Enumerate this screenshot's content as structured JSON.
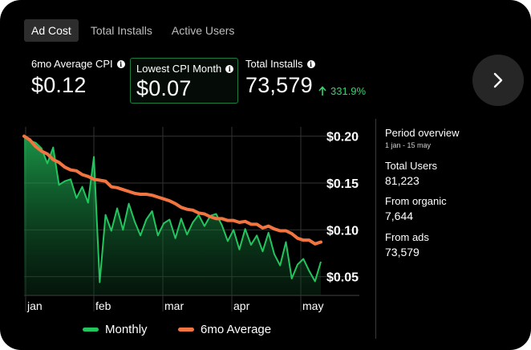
{
  "tabs": [
    "Ad Cost",
    "Total Installs",
    "Active Users"
  ],
  "kpis": {
    "avg_cpi": {
      "label": "6mo Average CPI",
      "value": "$0.12"
    },
    "lowest_cpi": {
      "label": "Lowest CPI Month",
      "value": "$0.07"
    },
    "total_installs": {
      "label": "Total Installs",
      "value": "73,579",
      "growth": "331.9%"
    }
  },
  "sidebar": {
    "title": "Period overview",
    "period": "1 jan - 15 may",
    "stats": [
      {
        "label": "Total Users",
        "value": "81,223"
      },
      {
        "label": "From organic",
        "value": "7,644"
      },
      {
        "label": "From ads",
        "value": "73,579"
      }
    ]
  },
  "colors": {
    "monthly": "#22c55e",
    "average": "#f27541",
    "accent_green": "#3bd16f"
  },
  "icons": {
    "info": "info-icon",
    "next": "chevron-right-icon",
    "growth": "arrow-up-icon"
  },
  "chart_data": {
    "type": "line",
    "x_ticks": [
      "jan",
      "feb",
      "mar",
      "apr",
      "may"
    ],
    "y_ticks": [
      "$0.20",
      "$0.15",
      "$0.10",
      "$0.05"
    ],
    "ylim": [
      0.03,
      0.21
    ],
    "grid": true,
    "legend_position": "bottom",
    "series": [
      {
        "name": "Monthly",
        "color": "#22c55e",
        "fill": true,
        "values": [
          0.2,
          0.195,
          0.193,
          0.187,
          0.171,
          0.188,
          0.148,
          0.152,
          0.154,
          0.134,
          0.146,
          0.129,
          0.178,
          0.044,
          0.116,
          0.099,
          0.123,
          0.1,
          0.128,
          0.109,
          0.094,
          0.111,
          0.12,
          0.094,
          0.107,
          0.111,
          0.091,
          0.112,
          0.095,
          0.108,
          0.116,
          0.104,
          0.115,
          0.117,
          0.105,
          0.088,
          0.1,
          0.079,
          0.101,
          0.084,
          0.094,
          0.077,
          0.097,
          0.074,
          0.062,
          0.087,
          0.048,
          0.063,
          0.069,
          0.056,
          0.045,
          0.066
        ]
      },
      {
        "name": "6mo Average",
        "color": "#f27541",
        "fill": false,
        "values": [
          0.2,
          0.196,
          0.189,
          0.184,
          0.181,
          0.175,
          0.172,
          0.167,
          0.164,
          0.163,
          0.159,
          0.157,
          0.154,
          0.153,
          0.152,
          0.146,
          0.145,
          0.143,
          0.141,
          0.139,
          0.138,
          0.138,
          0.137,
          0.135,
          0.133,
          0.131,
          0.128,
          0.124,
          0.122,
          0.121,
          0.118,
          0.117,
          0.114,
          0.112,
          0.112,
          0.11,
          0.11,
          0.108,
          0.109,
          0.106,
          0.106,
          0.102,
          0.104,
          0.101,
          0.099,
          0.099,
          0.096,
          0.091,
          0.089,
          0.089,
          0.085,
          0.087
        ]
      }
    ]
  }
}
